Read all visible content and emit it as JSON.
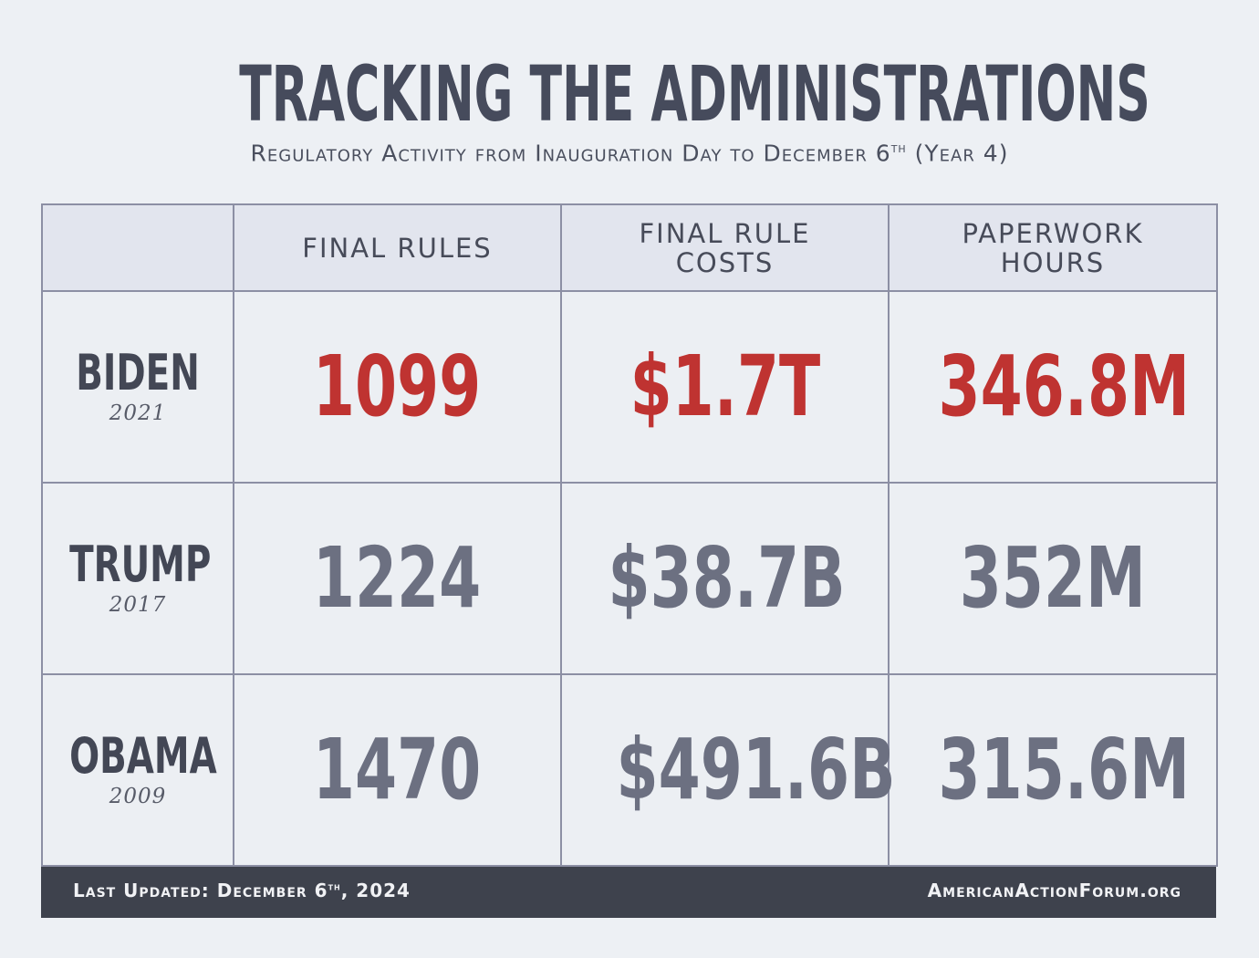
{
  "title": "TRACKING THE ADMINISTRATIONS",
  "subtitle": {
    "main": "Regulatory Activity from Inauguration Day to December 6",
    "sup": "th",
    "tail": " (Year 4)"
  },
  "columns": [
    {
      "lines": [
        "FINAL RULES"
      ]
    },
    {
      "lines": [
        "FINAL RULE",
        "COSTS"
      ]
    },
    {
      "lines": [
        "PAPERWORK",
        "HOURS"
      ]
    }
  ],
  "rows": [
    {
      "name": "BIDEN",
      "year": "2021",
      "values": [
        "1099",
        "$1.7T",
        "346.8M"
      ],
      "color": "#bf3331"
    },
    {
      "name": "TRUMP",
      "year": "2017",
      "values": [
        "1224",
        "$38.7B",
        "352M"
      ],
      "color": "#6c7081"
    },
    {
      "name": "OBAMA",
      "year": "2009",
      "values": [
        "1470",
        "$491.6B",
        "315.6M"
      ],
      "color": "#6c7081"
    }
  ],
  "footer": {
    "left_main": "Last Updated: December 6",
    "left_sup": "th",
    "left_tail": ", 2024",
    "right": "AmericanActionForum.org"
  },
  "chart_data": {
    "type": "table",
    "title": "TRACKING THE ADMINISTRATIONS",
    "subtitle": "Regulatory Activity from Inauguration Day to December 6th (Year 4)",
    "columns": [
      "FINAL RULES",
      "FINAL RULE COSTS",
      "PAPERWORK HOURS"
    ],
    "rows": [
      {
        "administration": "BIDEN",
        "start_year": 2021,
        "final_rules": 1099,
        "final_rule_costs": "$1.7T",
        "paperwork_hours": "346.8M"
      },
      {
        "administration": "TRUMP",
        "start_year": 2017,
        "final_rules": 1224,
        "final_rule_costs": "$38.7B",
        "paperwork_hours": "352M"
      },
      {
        "administration": "OBAMA",
        "start_year": 2009,
        "final_rules": 1470,
        "final_rule_costs": "$491.6B",
        "paperwork_hours": "315.6M"
      }
    ]
  }
}
